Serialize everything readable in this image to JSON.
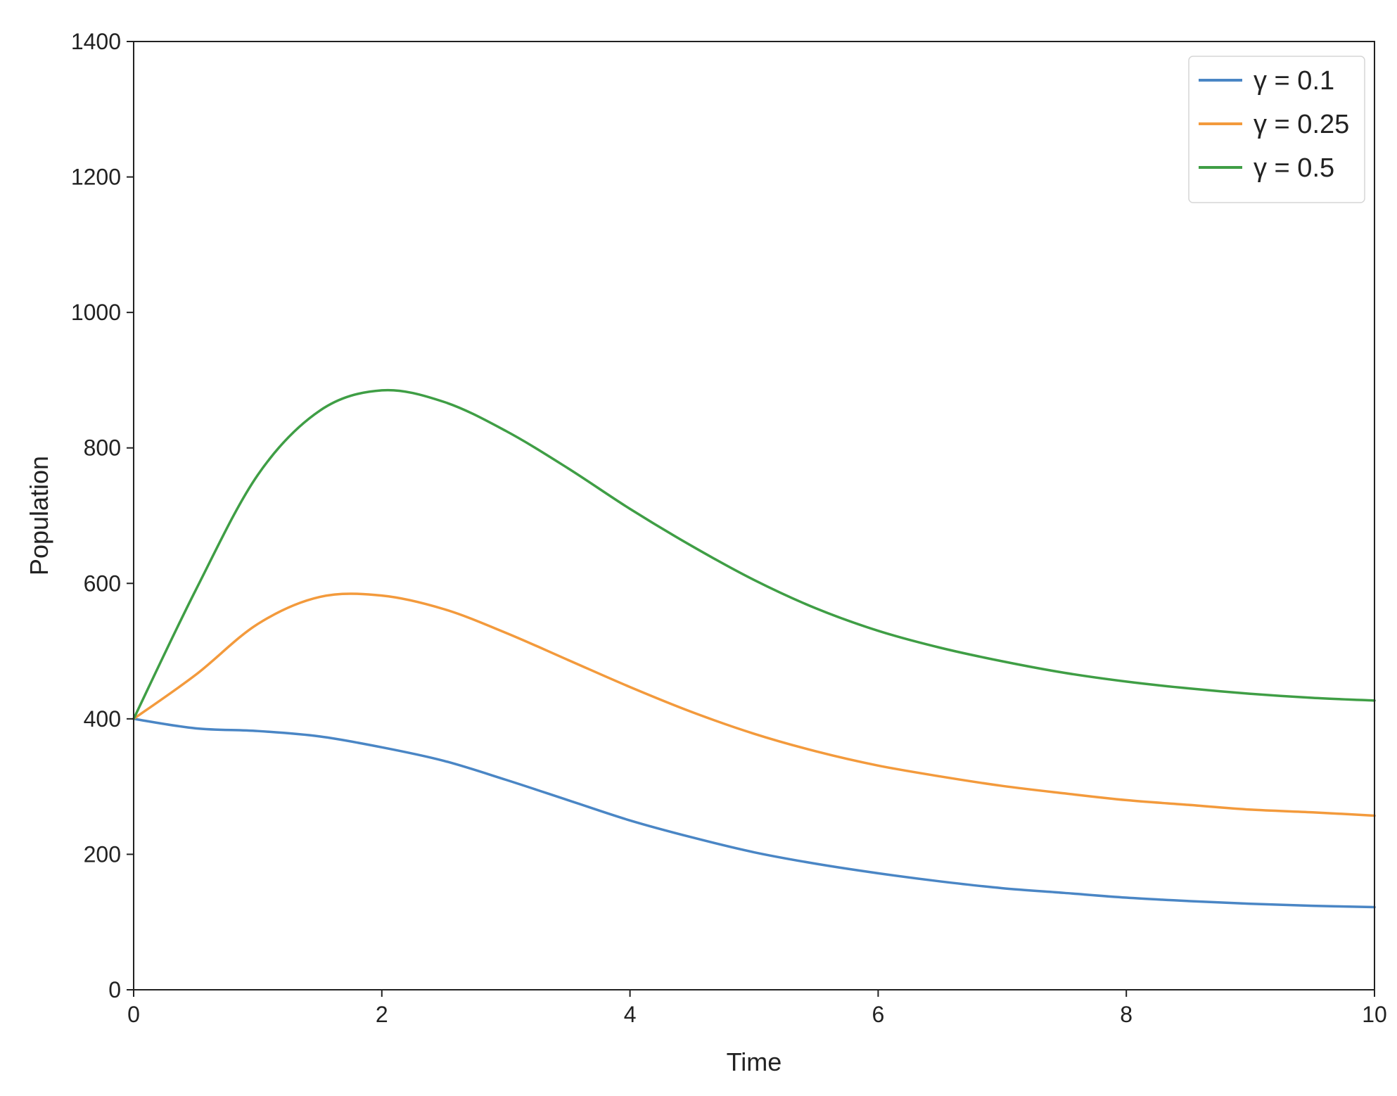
{
  "chart_data": {
    "type": "line",
    "title": "",
    "xlabel": "Time",
    "ylabel": "Population",
    "xlim": [
      0,
      10
    ],
    "ylim": [
      0,
      1400
    ],
    "xticks": [
      0,
      2,
      4,
      6,
      8,
      10
    ],
    "yticks": [
      0,
      200,
      400,
      600,
      800,
      1000,
      1200,
      1400
    ],
    "grid": false,
    "legend_position": "top-right",
    "x": [
      0,
      0.5,
      1,
      1.5,
      2,
      2.5,
      3,
      3.5,
      4,
      4.5,
      5,
      5.5,
      6,
      6.5,
      7,
      7.5,
      8,
      8.5,
      9,
      9.5,
      10
    ],
    "series": [
      {
        "name": "γ = 0.1",
        "color": "#4a86c5",
        "values": [
          400,
          386,
          382,
          374,
          358,
          338,
          310,
          280,
          250,
          225,
          203,
          186,
          172,
          160,
          150,
          143,
          136,
          131,
          127,
          124,
          122
        ]
      },
      {
        "name": "γ = 0.25",
        "color": "#f39a3c",
        "values": [
          400,
          465,
          540,
          580,
          582,
          562,
          527,
          487,
          447,
          410,
          378,
          352,
          331,
          315,
          301,
          290,
          280,
          273,
          266,
          262,
          257
        ]
      },
      {
        "name": "γ = 0.5",
        "color": "#3f9e45",
        "values": [
          400,
          590,
          760,
          855,
          885,
          868,
          825,
          770,
          710,
          655,
          605,
          563,
          530,
          505,
          485,
          468,
          455,
          445,
          437,
          431,
          427
        ]
      }
    ]
  }
}
